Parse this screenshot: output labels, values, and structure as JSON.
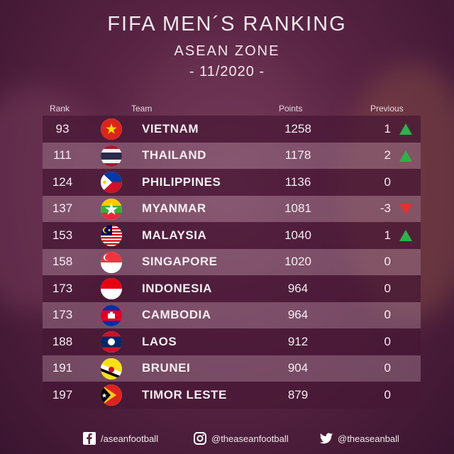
{
  "header": {
    "title": "FIFA MEN´S RANKING",
    "subtitle": "ASEAN ZONE",
    "date": "- 11/2020 -"
  },
  "columns": {
    "rank": "Rank",
    "team": "Team",
    "points": "Points",
    "previous": "Previous"
  },
  "colors": {
    "up": "#2fb14a",
    "down": "#e0322f"
  },
  "rows": [
    {
      "rank": "93",
      "team": "VIETNAM",
      "points": "1258",
      "previous": "1",
      "trend": "up",
      "flag": "vietnam-flag-icon"
    },
    {
      "rank": "111",
      "team": "THAILAND",
      "points": "1178",
      "previous": "2",
      "trend": "up",
      "flag": "thailand-flag-icon"
    },
    {
      "rank": "124",
      "team": "PHILIPPINES",
      "points": "1136",
      "previous": "0",
      "trend": "none",
      "flag": "philippines-flag-icon"
    },
    {
      "rank": "137",
      "team": "MYANMAR",
      "points": "1081",
      "previous": "-3",
      "trend": "down",
      "flag": "myanmar-flag-icon"
    },
    {
      "rank": "153",
      "team": "MALAYSIA",
      "points": "1040",
      "previous": "1",
      "trend": "up",
      "flag": "malaysia-flag-icon"
    },
    {
      "rank": "158",
      "team": "SINGAPORE",
      "points": "1020",
      "previous": "0",
      "trend": "none",
      "flag": "singapore-flag-icon"
    },
    {
      "rank": "173",
      "team": "INDONESIA",
      "points": "964",
      "previous": "0",
      "trend": "none",
      "flag": "indonesia-flag-icon"
    },
    {
      "rank": "173",
      "team": "CAMBODIA",
      "points": "964",
      "previous": "0",
      "trend": "none",
      "flag": "cambodia-flag-icon"
    },
    {
      "rank": "188",
      "team": "LAOS",
      "points": "912",
      "previous": "0",
      "trend": "none",
      "flag": "laos-flag-icon"
    },
    {
      "rank": "191",
      "team": "BRUNEI",
      "points": "904",
      "previous": "0",
      "trend": "none",
      "flag": "brunei-flag-icon"
    },
    {
      "rank": "197",
      "team": "TIMOR LESTE",
      "points": "879",
      "previous": "0",
      "trend": "none",
      "flag": "timor-leste-flag-icon"
    }
  ],
  "footer": {
    "facebook": "/aseanfootball",
    "instagram": "@theaseanfootball",
    "twitter": "@theaseanball"
  }
}
